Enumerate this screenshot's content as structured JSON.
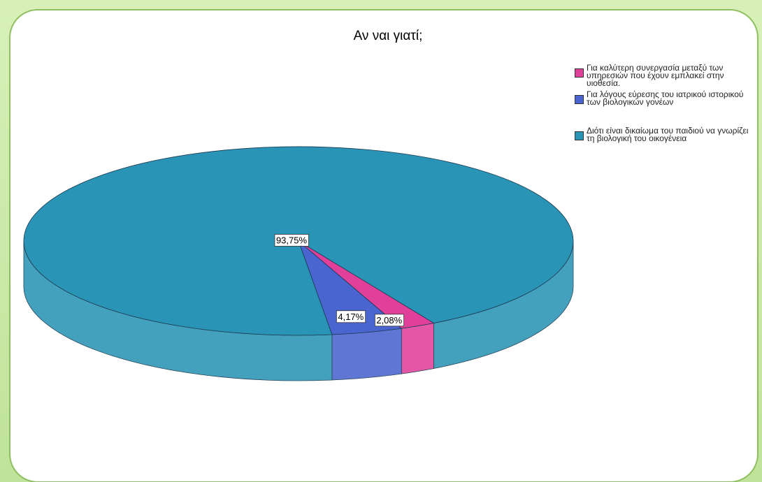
{
  "chart_data": {
    "type": "pie",
    "title": "Αν ναι γιατί;",
    "categories": [
      "Για καλύτερη συνεργασία μεταξύ των υπηρεσιών που έχουν εμπλακεί στην υιοθεσία.",
      "Για λόγους εύρεσης του ιατρικού ιστορικού των βιολογικών γονέων",
      "Διότι είναι δικαίωμα του παιδιού να γνωρίζει τη βιολογική του οικογένεια"
    ],
    "values": [
      2.08,
      4.17,
      93.75
    ],
    "value_labels": [
      "2,08%",
      "4,17%",
      "93,75%"
    ],
    "colors": [
      "#e0409a",
      "#4a64d0",
      "#2a94b6"
    ]
  }
}
